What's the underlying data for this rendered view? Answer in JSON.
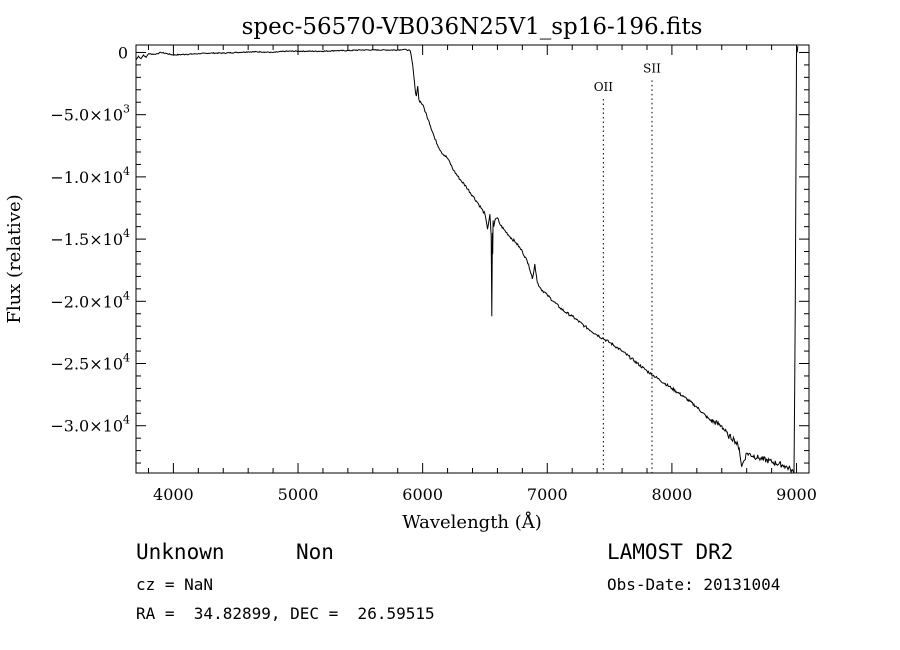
{
  "chart_data": {
    "type": "line",
    "title": "spec-56570-VB036N25V1_sp16-196.fits",
    "xlabel": "Wavelength (Å)",
    "ylabel": "Flux (relative)",
    "xlim": [
      3700,
      9100
    ],
    "ylim": [
      -33800,
      600
    ],
    "grid": false,
    "x_ticks": [
      4000,
      5000,
      6000,
      7000,
      8000,
      9000
    ],
    "x_tick_labels": [
      "4000",
      "5000",
      "6000",
      "7000",
      "8000",
      "9000"
    ],
    "y_ticks": [
      0,
      -5000,
      -10000,
      -15000,
      -20000,
      -25000,
      -30000
    ],
    "y_tick_labels": [
      {
        "mantissa": "0",
        "exp": ""
      },
      {
        "mantissa": "−5.0×10",
        "exp": "3"
      },
      {
        "mantissa": "−1.0×10",
        "exp": "4"
      },
      {
        "mantissa": "−1.5×10",
        "exp": "4"
      },
      {
        "mantissa": "−2.0×10",
        "exp": "4"
      },
      {
        "mantissa": "−2.5×10",
        "exp": "4"
      },
      {
        "mantissa": "−3.0×10",
        "exp": "4"
      }
    ],
    "lines": [
      {
        "label": "OII",
        "x": 7450,
        "label_y": -3100
      },
      {
        "label": "SII",
        "x": 7840,
        "label_y": -1600
      }
    ],
    "series": [
      {
        "x": [
          3700,
          3720,
          3740,
          3760,
          3780,
          3800,
          3850,
          3900,
          3950,
          4000,
          4100,
          4200,
          4300,
          4400,
          4500,
          4600,
          4700,
          4800,
          4900,
          5000,
          5100,
          5200,
          5300,
          5400,
          5500,
          5600,
          5700,
          5800,
          5850,
          5900,
          5920,
          5940,
          5950,
          5960,
          5970,
          6000,
          6050,
          6100,
          6150,
          6200,
          6250,
          6300,
          6350,
          6400,
          6450,
          6500,
          6520,
          6540,
          6550,
          6555,
          6560,
          6562,
          6565,
          6570,
          6575,
          6580,
          6600,
          6620,
          6650,
          6700,
          6750,
          6800,
          6850,
          6880,
          6900,
          6920,
          6950,
          7000,
          7050,
          7100,
          7150,
          7200,
          7300,
          7400,
          7450,
          7500,
          7600,
          7700,
          7800,
          7900,
          8000,
          8100,
          8200,
          8300,
          8400,
          8450,
          8500,
          8540,
          8560,
          8600,
          8700,
          8800,
          8900,
          8950,
          8980,
          8990,
          9000,
          9010
        ],
        "y": [
          -600,
          -300,
          -500,
          -200,
          -400,
          -100,
          -150,
          0,
          -100,
          -200,
          -150,
          -100,
          -50,
          -50,
          0,
          50,
          50,
          0,
          100,
          100,
          100,
          100,
          150,
          150,
          200,
          200,
          200,
          200,
          250,
          150,
          -1000,
          -3000,
          -3500,
          -2700,
          -3800,
          -4200,
          -5500,
          -7000,
          -8000,
          -8500,
          -9500,
          -10200,
          -10800,
          -11500,
          -12200,
          -13000,
          -14200,
          -13000,
          -14800,
          -21200,
          -14500,
          -16200,
          -13500,
          -14000,
          -13800,
          -13500,
          -13300,
          -13800,
          -14200,
          -14800,
          -15300,
          -16000,
          -17000,
          -18200,
          -17000,
          -18500,
          -19000,
          -19500,
          -20000,
          -20500,
          -20900,
          -21200,
          -22000,
          -22700,
          -23000,
          -23300,
          -24000,
          -24800,
          -25600,
          -26300,
          -27000,
          -27700,
          -28500,
          -29500,
          -30000,
          -30800,
          -31100,
          -31800,
          -33300,
          -32200,
          -32600,
          -32900,
          -33200,
          -33500,
          -33800,
          -20000,
          0,
          500
        ]
      }
    ]
  },
  "info": {
    "class_label": "Unknown",
    "subclass_label": "Non",
    "survey": "LAMOST DR2",
    "cz": "cz = NaN",
    "obs_date": "Obs-Date: 20131004",
    "coords": "RA =  34.82899, DEC =  26.59515"
  }
}
